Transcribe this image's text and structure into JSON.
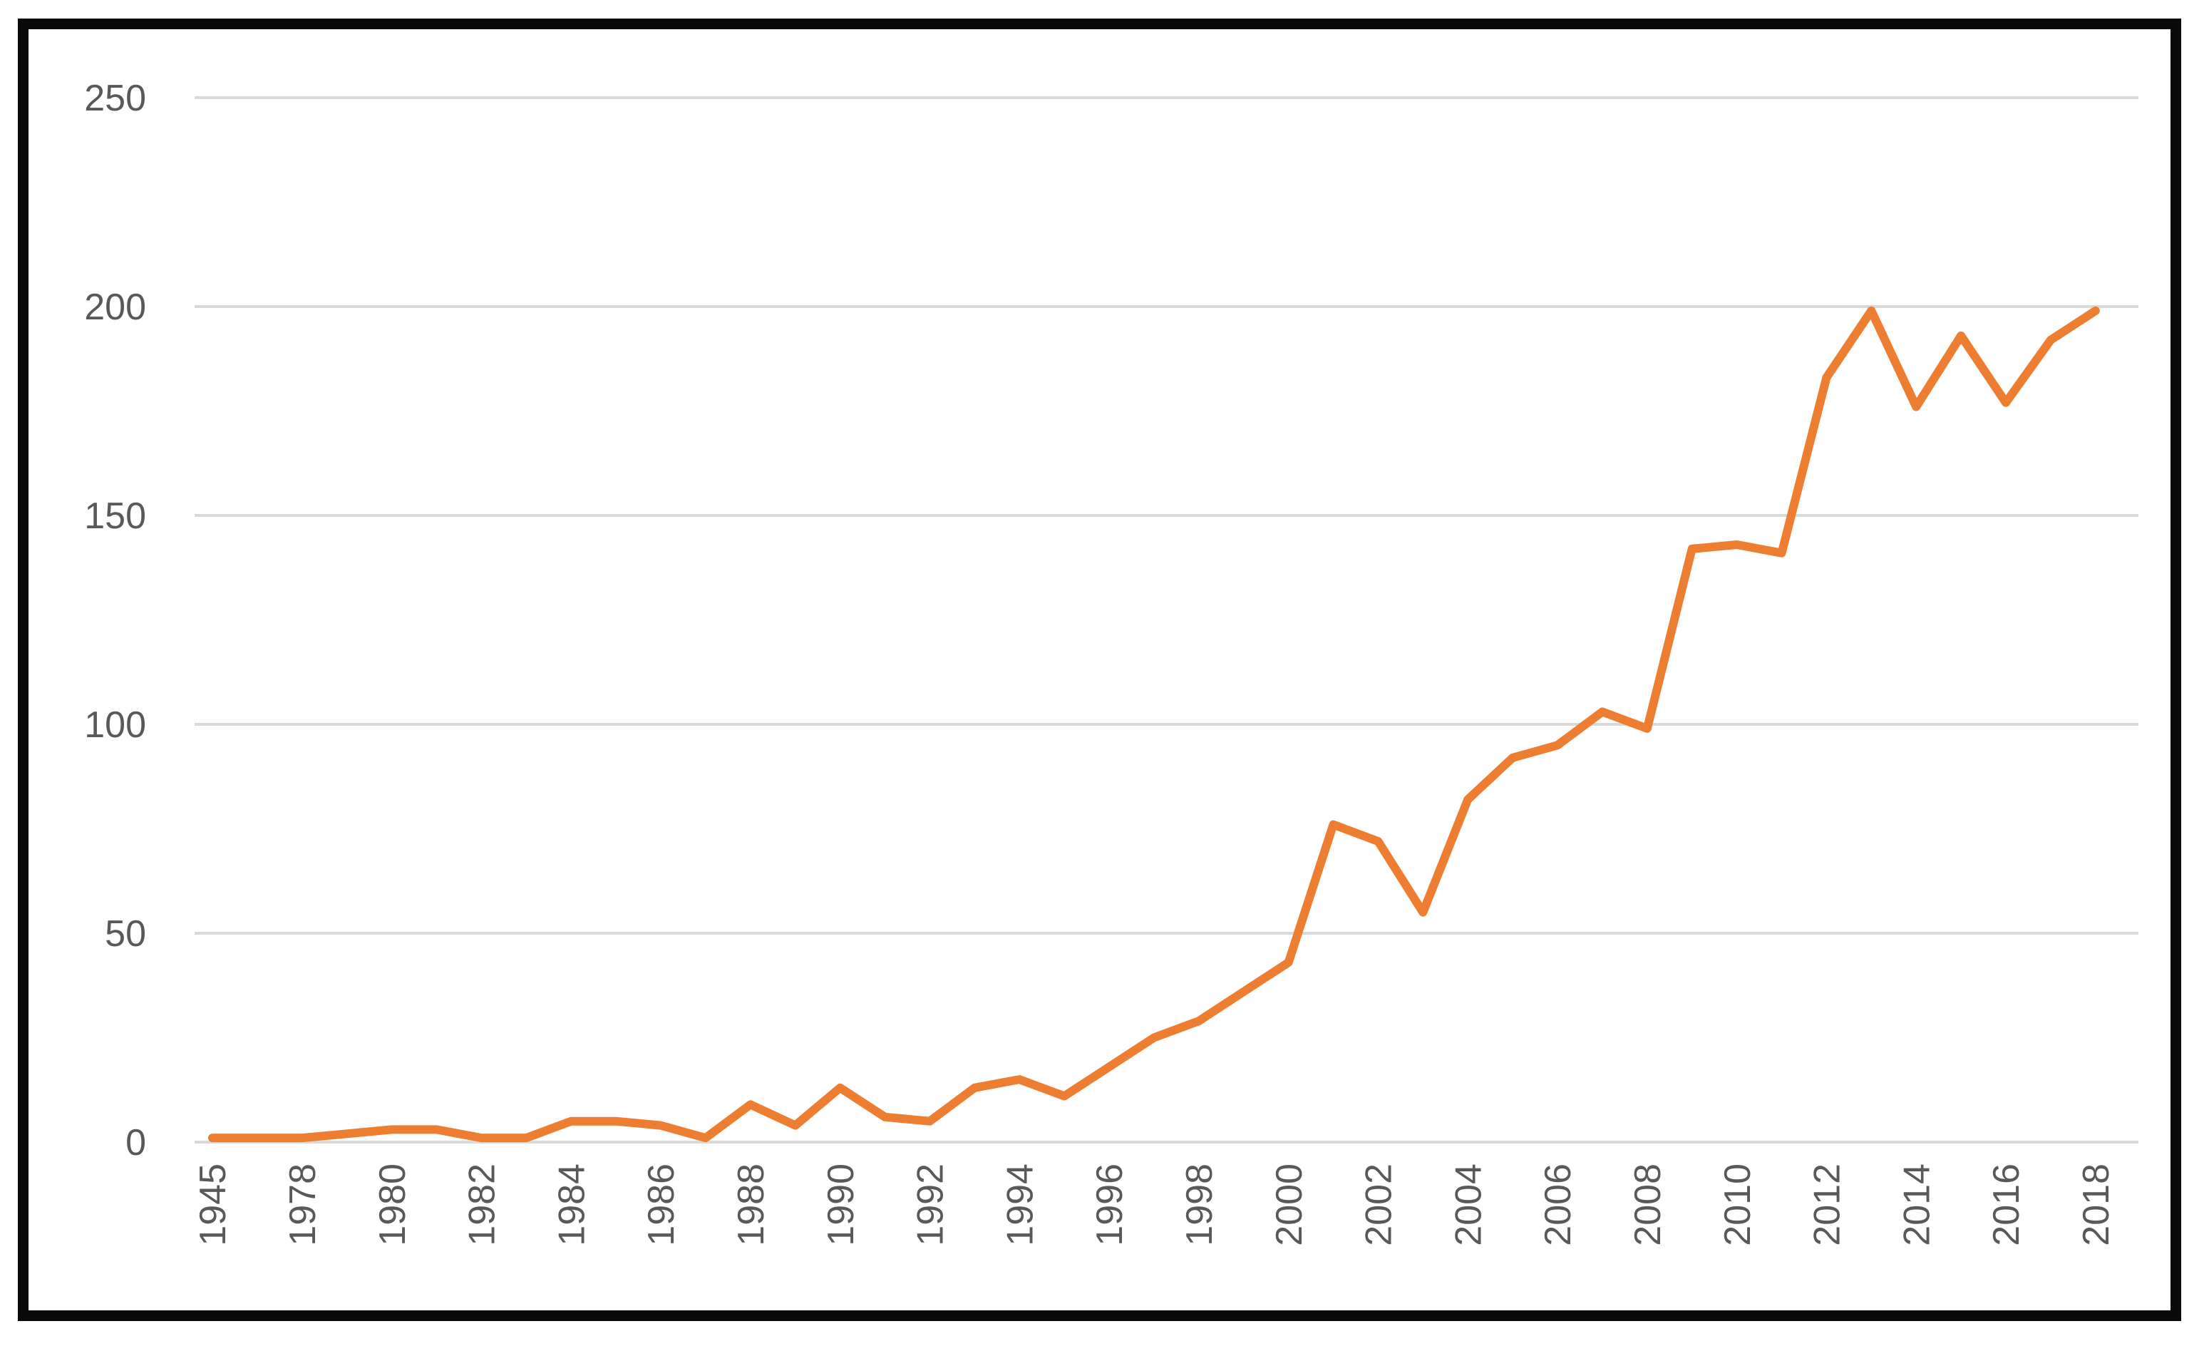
{
  "chart_data": {
    "type": "line",
    "title": "",
    "xlabel": "",
    "ylabel": "",
    "x": [
      1945,
      1977,
      1978,
      1979,
      1980,
      1981,
      1982,
      1983,
      1984,
      1985,
      1986,
      1987,
      1988,
      1989,
      1990,
      1991,
      1992,
      1993,
      1994,
      1995,
      1996,
      1997,
      1998,
      1999,
      2000,
      2001,
      2002,
      2003,
      2004,
      2005,
      2006,
      2007,
      2008,
      2009,
      2010,
      2011,
      2012,
      2013,
      2014,
      2015,
      2016,
      2017,
      2018
    ],
    "series": [
      {
        "name": "annual-count",
        "values": [
          1,
          1,
          1,
          2,
          3,
          3,
          1,
          1,
          5,
          5,
          4,
          1,
          9,
          4,
          13,
          6,
          5,
          13,
          15,
          11,
          18,
          25,
          29,
          36,
          43,
          76,
          72,
          55,
          82,
          92,
          95,
          103,
          99,
          142,
          143,
          141,
          183,
          199,
          176,
          193,
          177,
          192,
          199
        ]
      }
    ],
    "x_tick_labels": [
      "1945",
      "1978",
      "1980",
      "1982",
      "1984",
      "1986",
      "1988",
      "1990",
      "1992",
      "1994",
      "1996",
      "1998",
      "2000",
      "2002",
      "2004",
      "2006",
      "2008",
      "2010",
      "2012",
      "2014",
      "2016",
      "2018"
    ],
    "x_tick_every": 2,
    "y_ticks": [
      "0",
      "50",
      "100",
      "150",
      "200",
      "250"
    ],
    "ylim": [
      0,
      250
    ],
    "grid": "horizontal",
    "legend": "none",
    "colors": {
      "line": "#ED7D31",
      "gridline": "#D9D9D9",
      "tick_label": "#595959",
      "frame_border": "#0a0a0a",
      "background": "#ffffff"
    }
  }
}
